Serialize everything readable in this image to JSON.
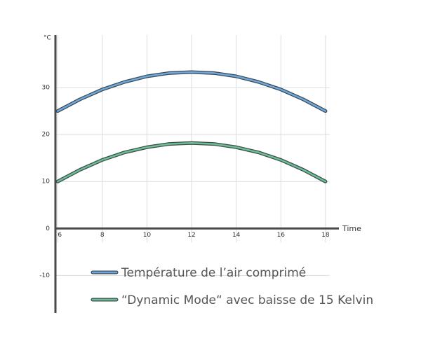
{
  "chart_data": {
    "type": "line",
    "y_label": "°C",
    "x_label": "Time",
    "x": [
      6,
      7,
      8,
      9,
      10,
      11,
      12,
      13,
      14,
      15,
      16,
      17,
      18
    ],
    "series": [
      {
        "name": "Température de l’air comprimé",
        "color": "#6fa8dc",
        "values": [
          25,
          27.5,
          29.6,
          31.2,
          32.4,
          33.1,
          33.3,
          33.1,
          32.4,
          31.2,
          29.6,
          27.5,
          25
        ]
      },
      {
        "name": "“Dynamic Mode“ avec baisse de 15 Kelvin",
        "color": "#6dbf8c",
        "values": [
          10,
          12.5,
          14.6,
          16.2,
          17.3,
          18,
          18.2,
          18,
          17.3,
          16.2,
          14.6,
          12.5,
          10
        ]
      }
    ],
    "xlim": [
      5.9,
      18.6
    ],
    "ylim": [
      -18,
      41.2
    ],
    "xticks": [
      6,
      8,
      10,
      12,
      14,
      16,
      18
    ],
    "yticks": [
      -10,
      0,
      10,
      20,
      30
    ],
    "grid": true
  }
}
